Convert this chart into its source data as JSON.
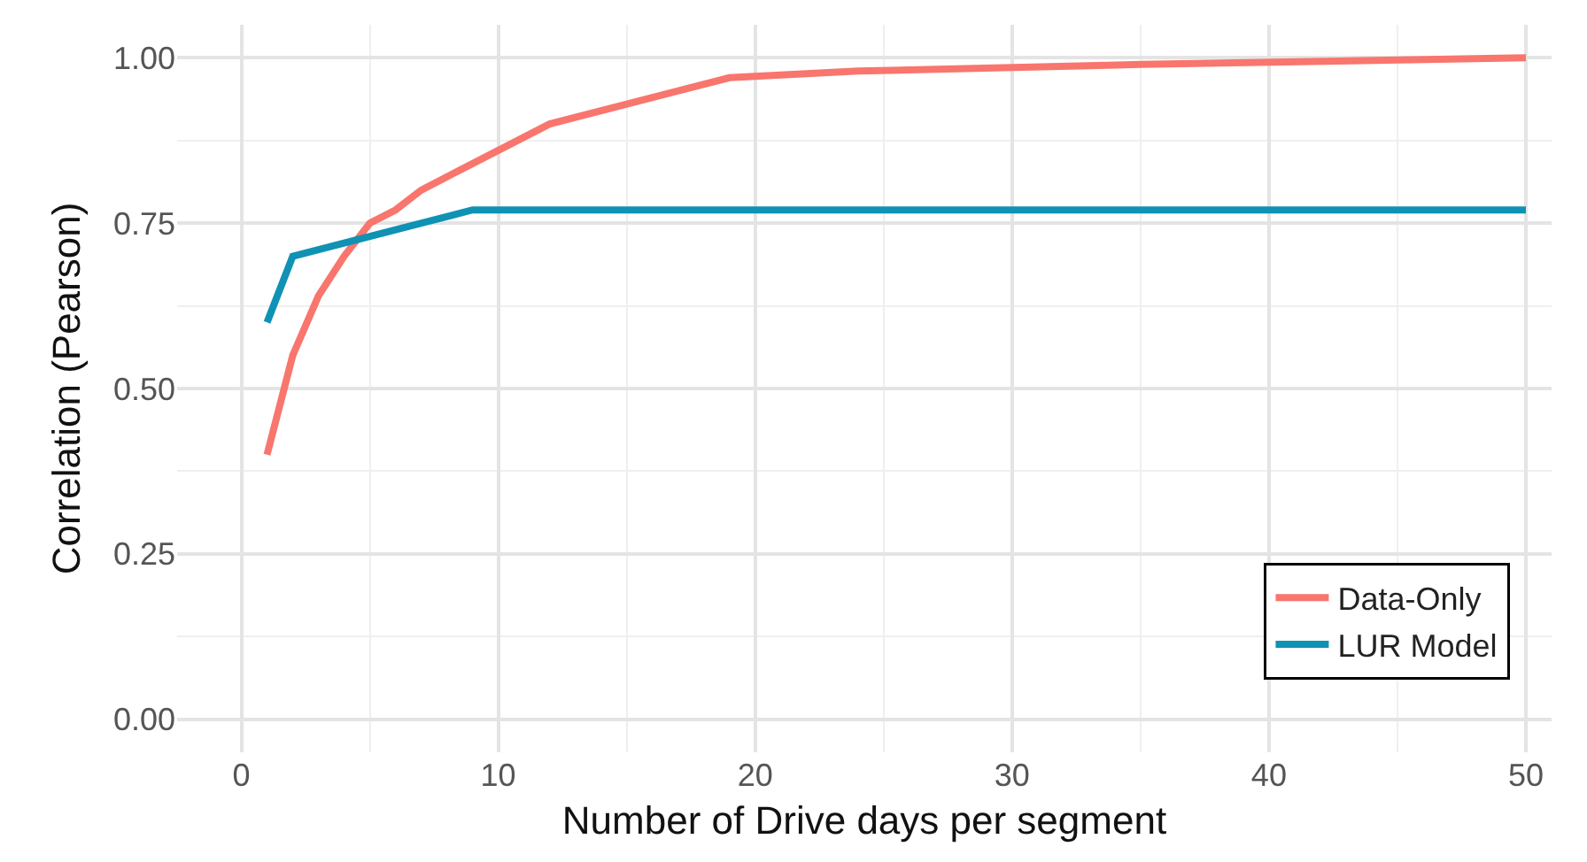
{
  "chart_data": {
    "type": "line",
    "xlabel": "Number of Drive days per segment",
    "ylabel": "Correlation (Pearson)",
    "xlim": [
      -2.5,
      51
    ],
    "xticks": [
      0,
      10,
      20,
      30,
      40,
      50
    ],
    "ylim": [
      -0.05,
      1.05
    ],
    "yticks": [
      {
        "value": 0,
        "label": "0.00"
      },
      {
        "value": 0.25,
        "label": "0.25"
      },
      {
        "value": 0.5,
        "label": "0.50"
      },
      {
        "value": 0.75,
        "label": "0.75"
      },
      {
        "value": 1,
        "label": "1.00"
      }
    ],
    "grid": true,
    "legend": "bottom right",
    "marker": "none",
    "line_style": "solid",
    "series": [
      {
        "name": "Data-Only",
        "color": "#f8766d",
        "x": [
          1,
          2,
          3,
          4,
          5,
          6,
          7,
          9,
          12,
          19,
          24,
          35,
          50
        ],
        "values": [
          0.4,
          0.55,
          0.64,
          0.7,
          0.75,
          0.77,
          0.8,
          0.84,
          0.9,
          0.97,
          0.98,
          0.99,
          1.0
        ]
      },
      {
        "name": "LUR Model",
        "color": "#0f92b3",
        "x": [
          1,
          2,
          5,
          9,
          50
        ],
        "values": [
          0.6,
          0.7,
          0.73,
          0.77,
          0.77
        ]
      }
    ]
  }
}
